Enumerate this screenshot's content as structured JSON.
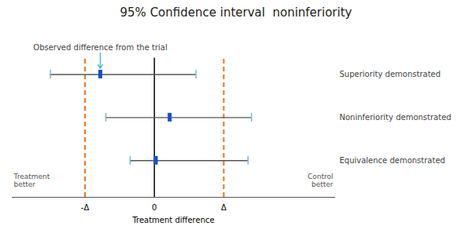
{
  "chart_data": {
    "type": "interval",
    "title": "95% Confidence interval  noninferiority",
    "xlabel": "Treatment difference",
    "categories": [
      "Superiority demonstrated",
      "Noninferiority demonstrated",
      "Equivalence demonstrated"
    ],
    "values": [
      -0.78,
      0.22,
      0.02
    ],
    "color": "#1a4fcc",
    "error_bars": {
      "lower": [
        -1.5,
        -0.7,
        -0.35
      ],
      "upper": [
        0.6,
        1.4,
        1.35
      ],
      "color": "#555555",
      "cap_color": "#7ab3d4"
    },
    "reference_lines": [
      {
        "value": -1,
        "color": "#e87820",
        "line_style": "dashed"
      },
      {
        "value": 0,
        "color": "#111111",
        "line_style": "solid"
      },
      {
        "value": 1,
        "color": "#e87820",
        "line_style": "dashed"
      }
    ],
    "annotations": [
      {
        "text": "Observed difference from the trial",
        "category": "Superiority demonstrated",
        "arrow_color": "#44bbcc"
      }
    ],
    "side_labels": [
      "Treatment\nbetter",
      "Control\nbetter"
    ],
    "xlim": [
      -2.05,
      2.6
    ],
    "xticks": [
      {
        "value": -1,
        "label": "-Δ"
      },
      0,
      {
        "value": 1,
        "label": "Δ"
      }
    ],
    "tick_labels": "x",
    "grid": false
  }
}
